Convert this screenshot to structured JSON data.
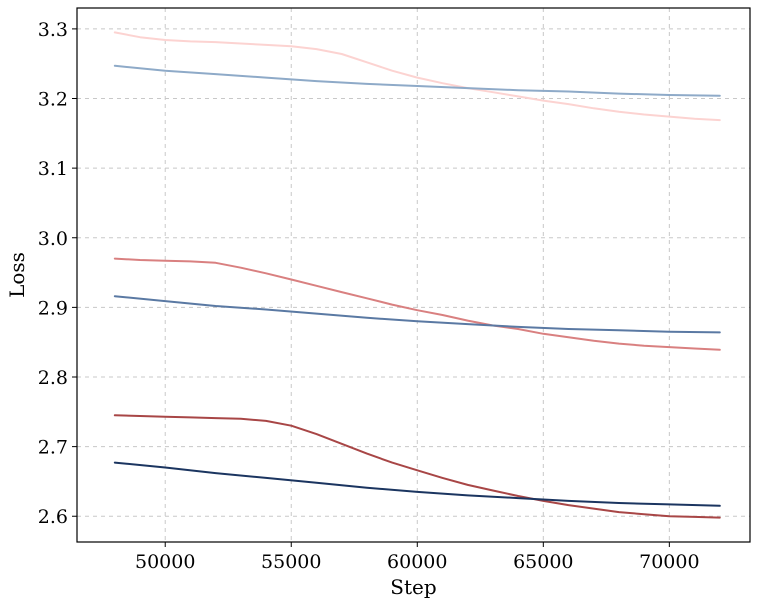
{
  "chart_data": {
    "type": "line",
    "title": "",
    "xlabel": "Step",
    "ylabel": "Loss",
    "xlim": [
      46500,
      73200
    ],
    "ylim": [
      2.563,
      3.33
    ],
    "xticks": [
      50000,
      55000,
      60000,
      65000,
      70000
    ],
    "yticks": [
      2.6,
      2.7,
      2.8,
      2.9,
      3.0,
      3.1,
      3.2,
      3.3
    ],
    "xtick_labels": [
      "50000",
      "55000",
      "60000",
      "65000",
      "70000"
    ],
    "ytick_labels": [
      "2.6",
      "2.7",
      "2.8",
      "2.9",
      "3.0",
      "3.1",
      "3.2",
      "3.3"
    ],
    "grid": true,
    "legend": "none",
    "series": [
      {
        "color": "#fcd3d1",
        "x": [
          48000,
          49000,
          50000,
          51000,
          52000,
          53000,
          54000,
          55000,
          56000,
          57000,
          58000,
          59000,
          60000,
          61000,
          62000,
          63000,
          64000,
          65000,
          66000,
          67000,
          68000,
          69000,
          70000,
          71000,
          72000
        ],
        "y": [
          3.295,
          3.288,
          3.284,
          3.282,
          3.281,
          3.279,
          3.277,
          3.275,
          3.271,
          3.264,
          3.252,
          3.24,
          3.23,
          3.222,
          3.215,
          3.209,
          3.203,
          3.197,
          3.192,
          3.186,
          3.181,
          3.177,
          3.174,
          3.171,
          3.169
        ]
      },
      {
        "color": "#8eaac8",
        "x": [
          48000,
          50000,
          52000,
          54000,
          56000,
          58000,
          60000,
          62000,
          64000,
          66000,
          68000,
          70000,
          72000
        ],
        "y": [
          3.247,
          3.24,
          3.235,
          3.23,
          3.225,
          3.221,
          3.218,
          3.215,
          3.212,
          3.21,
          3.207,
          3.205,
          3.204
        ]
      },
      {
        "color": "#d98080",
        "x": [
          48000,
          49000,
          50000,
          51000,
          52000,
          53000,
          54000,
          55000,
          56000,
          57000,
          58000,
          59000,
          60000,
          61000,
          62000,
          63000,
          64000,
          65000,
          66000,
          67000,
          68000,
          69000,
          70000,
          71000,
          72000
        ],
        "y": [
          2.97,
          2.968,
          2.967,
          2.966,
          2.964,
          2.957,
          2.949,
          2.94,
          2.931,
          2.922,
          2.913,
          2.904,
          2.896,
          2.889,
          2.881,
          2.874,
          2.869,
          2.862,
          2.857,
          2.852,
          2.848,
          2.845,
          2.843,
          2.841,
          2.839
        ]
      },
      {
        "color": "#5a79a3",
        "x": [
          48000,
          50000,
          52000,
          54000,
          56000,
          58000,
          60000,
          62000,
          64000,
          66000,
          68000,
          70000,
          72000
        ],
        "y": [
          2.916,
          2.909,
          2.902,
          2.897,
          2.891,
          2.885,
          2.88,
          2.876,
          2.872,
          2.869,
          2.867,
          2.865,
          2.864
        ]
      },
      {
        "color": "#a84646",
        "x": [
          48000,
          49000,
          50000,
          51000,
          52000,
          53000,
          54000,
          55000,
          56000,
          57000,
          58000,
          59000,
          60000,
          61000,
          62000,
          63000,
          64000,
          65000,
          66000,
          67000,
          68000,
          69000,
          70000,
          71000,
          72000
        ],
        "y": [
          2.745,
          2.744,
          2.743,
          2.742,
          2.741,
          2.74,
          2.737,
          2.73,
          2.718,
          2.704,
          2.69,
          2.677,
          2.666,
          2.655,
          2.645,
          2.637,
          2.629,
          2.622,
          2.616,
          2.611,
          2.606,
          2.603,
          2.6,
          2.599,
          2.598
        ]
      },
      {
        "color": "#1b3560",
        "x": [
          48000,
          50000,
          52000,
          54000,
          56000,
          58000,
          60000,
          62000,
          64000,
          66000,
          68000,
          70000,
          72000
        ],
        "y": [
          2.677,
          2.67,
          2.662,
          2.655,
          2.648,
          2.641,
          2.635,
          2.63,
          2.626,
          2.622,
          2.619,
          2.617,
          2.615
        ]
      }
    ]
  }
}
